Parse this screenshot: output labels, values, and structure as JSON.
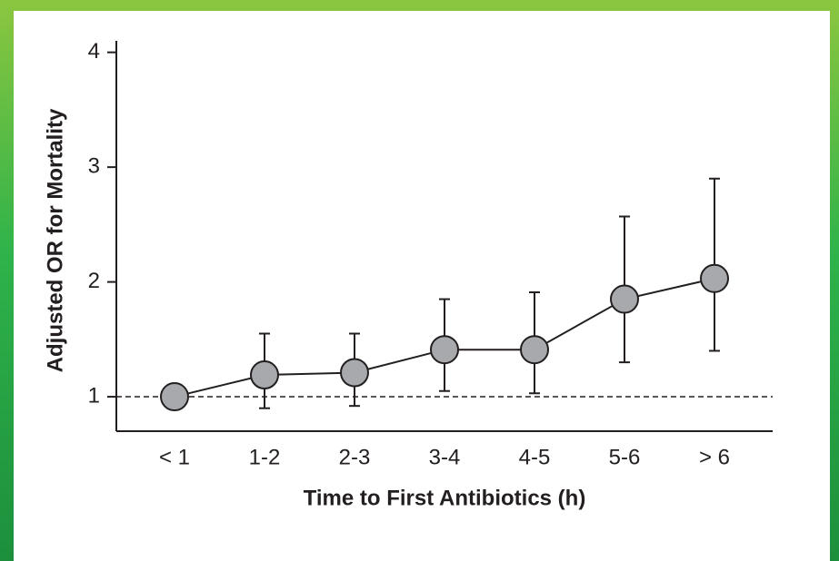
{
  "chart_data": {
    "type": "line",
    "x_label": "Time to First Antibiotics (h)",
    "y_label": "Adjusted OR for Mortality",
    "categories": [
      "< 1",
      "1-2",
      "2-3",
      "3-4",
      "4-5",
      "5-6",
      "> 6"
    ],
    "values": [
      1.0,
      1.19,
      1.21,
      1.41,
      1.41,
      1.85,
      2.03
    ],
    "lower": [
      1.0,
      0.9,
      0.92,
      1.05,
      1.03,
      1.3,
      1.4
    ],
    "upper": [
      1.0,
      1.55,
      1.55,
      1.85,
      1.91,
      2.57,
      2.9
    ],
    "color": "#a7a9ac",
    "reference_line": 1,
    "ylim": [
      0.7,
      4.1
    ],
    "yticks": [
      1,
      2,
      3,
      4
    ]
  }
}
